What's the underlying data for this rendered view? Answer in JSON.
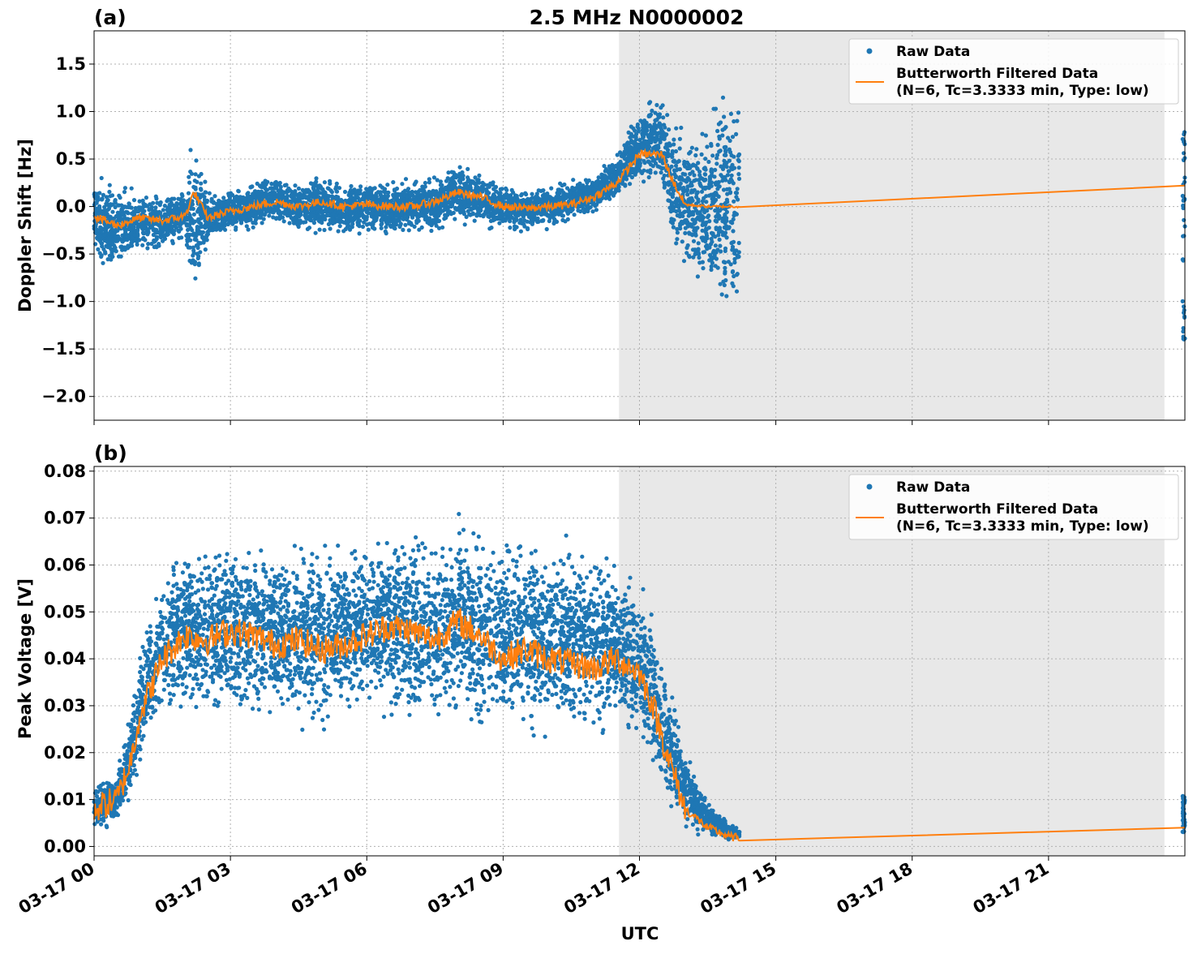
{
  "figure": {
    "title": "2.5 MHz N0000002",
    "xlabel": "UTC",
    "x_ticks": [
      "03-17 00",
      "03-17 03",
      "03-17 06",
      "03-17 09",
      "03-17 12",
      "03-17 15",
      "03-17 18",
      "03-17 21"
    ],
    "colors": {
      "raw": "#1f77b4",
      "filtered": "#ff7f0e",
      "shade": "#e8e8e8",
      "grid": "#b0b0b0"
    }
  },
  "legend": {
    "raw_label": "Raw Data",
    "filtered_label_line1": "Butterworth Filtered Data",
    "filtered_label_line2": "(N=6, Tc=3.3333 min, Type: low)",
    "placement": "top-right"
  },
  "chart_data": [
    {
      "type": "scatter",
      "panel": "(a)",
      "ylabel": "Doppler Shift [Hz]",
      "x_unit": "hours UTC on 03-17",
      "xlim": [
        0,
        24
      ],
      "ylim": [
        -2.25,
        1.85
      ],
      "y_ticks": [
        -2.0,
        -1.5,
        -1.0,
        -0.5,
        0.0,
        0.5,
        1.0,
        1.5
      ],
      "y_tick_labels": [
        "−2.0",
        "−1.5",
        "−1.0",
        "−0.5",
        "0.0",
        "0.5",
        "1.0",
        "1.5"
      ],
      "shaded_x_range": [
        11.55,
        23.55
      ],
      "grid": true,
      "series": [
        {
          "name": "Butterworth Filtered Data",
          "kind": "line",
          "x": [
            0,
            0.5,
            1.0,
            1.5,
            2.0,
            2.2,
            2.5,
            3.0,
            3.5,
            4.0,
            4.5,
            5.0,
            5.5,
            6.0,
            6.5,
            7.0,
            7.5,
            8.0,
            8.5,
            9.0,
            9.5,
            10.0,
            10.5,
            11.0,
            11.5,
            12.0,
            12.5,
            12.7,
            13.0,
            13.5,
            14.0,
            14.2,
            24.0
          ],
          "y": [
            -0.1,
            -0.2,
            -0.12,
            -0.15,
            -0.1,
            0.15,
            -0.12,
            -0.05,
            0.0,
            0.05,
            0.0,
            0.05,
            0.0,
            0.02,
            0.0,
            0.0,
            0.05,
            0.15,
            0.1,
            0.0,
            -0.02,
            0.0,
            0.02,
            0.1,
            0.25,
            0.55,
            0.55,
            0.3,
            0.02,
            0.0,
            0.0,
            0.0,
            0.22
          ]
        },
        {
          "name": "Raw Data",
          "kind": "scatter-band",
          "x": [
            0,
            0.5,
            1.0,
            1.5,
            2.0,
            2.2,
            2.5,
            3.0,
            3.5,
            4.0,
            4.5,
            5.0,
            5.5,
            6.0,
            6.5,
            7.0,
            7.5,
            8.0,
            8.5,
            9.0,
            9.5,
            10.0,
            10.5,
            11.0,
            11.5,
            12.0,
            12.5,
            12.7,
            13.0,
            13.5,
            14.0,
            14.2
          ],
          "y_low": [
            -0.6,
            -0.8,
            -0.55,
            -0.5,
            -0.4,
            -1.2,
            -0.45,
            -0.3,
            -0.3,
            -0.2,
            -0.3,
            -0.3,
            -0.35,
            -0.3,
            -0.35,
            -0.3,
            -0.3,
            -0.2,
            -0.25,
            -0.3,
            -0.3,
            -0.25,
            -0.2,
            -0.1,
            0.05,
            0.2,
            0.2,
            -0.5,
            -0.8,
            -1.2,
            -1.4,
            -1.6
          ],
          "y_high": [
            0.4,
            0.3,
            0.2,
            0.15,
            0.25,
            0.85,
            0.2,
            0.2,
            0.3,
            0.35,
            0.3,
            0.35,
            0.3,
            0.3,
            0.3,
            0.3,
            0.35,
            0.5,
            0.4,
            0.25,
            0.25,
            0.25,
            0.3,
            0.4,
            0.6,
            1.1,
            1.3,
            1.0,
            0.9,
            1.2,
            1.5,
            1.6
          ]
        }
      ]
    },
    {
      "type": "scatter",
      "panel": "(b)",
      "ylabel": "Peak Voltage [V]",
      "x_unit": "hours UTC on 03-17",
      "xlim": [
        0,
        24
      ],
      "ylim": [
        -0.002,
        0.081
      ],
      "y_ticks": [
        0.0,
        0.01,
        0.02,
        0.03,
        0.04,
        0.05,
        0.06,
        0.07,
        0.08
      ],
      "y_tick_labels": [
        "0.00",
        "0.01",
        "0.02",
        "0.03",
        "0.04",
        "0.05",
        "0.06",
        "0.07",
        "0.08"
      ],
      "shaded_x_range": [
        11.55,
        23.55
      ],
      "grid": true,
      "series": [
        {
          "name": "Butterworth Filtered Data",
          "kind": "line",
          "x": [
            0,
            0.5,
            0.8,
            1.0,
            1.3,
            1.5,
            2.0,
            2.5,
            3.0,
            3.5,
            4.0,
            4.5,
            5.0,
            5.5,
            6.0,
            6.5,
            7.0,
            7.5,
            8.0,
            8.5,
            9.0,
            9.5,
            10.0,
            10.5,
            11.0,
            11.5,
            12.0,
            12.3,
            12.6,
            13.0,
            13.5,
            14.0,
            14.2,
            24.0
          ],
          "y": [
            0.008,
            0.01,
            0.018,
            0.028,
            0.035,
            0.04,
            0.045,
            0.044,
            0.046,
            0.045,
            0.043,
            0.044,
            0.042,
            0.043,
            0.045,
            0.047,
            0.046,
            0.044,
            0.048,
            0.045,
            0.04,
            0.042,
            0.04,
            0.039,
            0.038,
            0.04,
            0.037,
            0.03,
            0.02,
            0.008,
            0.004,
            0.002,
            0.0018,
            0.004
          ]
        },
        {
          "name": "Raw Data",
          "kind": "scatter-band",
          "x": [
            0,
            0.5,
            0.8,
            1.0,
            1.3,
            1.5,
            2.0,
            2.5,
            3.0,
            3.5,
            4.0,
            4.5,
            5.0,
            5.5,
            6.0,
            6.5,
            7.0,
            7.5,
            8.0,
            8.5,
            9.0,
            9.5,
            10.0,
            10.5,
            11.0,
            11.5,
            12.0,
            12.3,
            12.6,
            13.0,
            13.5,
            14.0,
            14.2
          ],
          "y_low": [
            0.003,
            0.004,
            0.008,
            0.015,
            0.022,
            0.025,
            0.025,
            0.025,
            0.025,
            0.024,
            0.025,
            0.024,
            0.023,
            0.024,
            0.026,
            0.025,
            0.024,
            0.023,
            0.024,
            0.023,
            0.022,
            0.022,
            0.021,
            0.02,
            0.02,
            0.022,
            0.02,
            0.015,
            0.008,
            0.002,
            0.0015,
            0.0012,
            0.0012
          ],
          "y_high": [
            0.014,
            0.016,
            0.03,
            0.045,
            0.055,
            0.062,
            0.068,
            0.066,
            0.068,
            0.068,
            0.068,
            0.066,
            0.068,
            0.068,
            0.07,
            0.071,
            0.07,
            0.069,
            0.073,
            0.07,
            0.068,
            0.07,
            0.066,
            0.07,
            0.068,
            0.062,
            0.058,
            0.05,
            0.04,
            0.022,
            0.01,
            0.005,
            0.004
          ]
        }
      ]
    }
  ]
}
